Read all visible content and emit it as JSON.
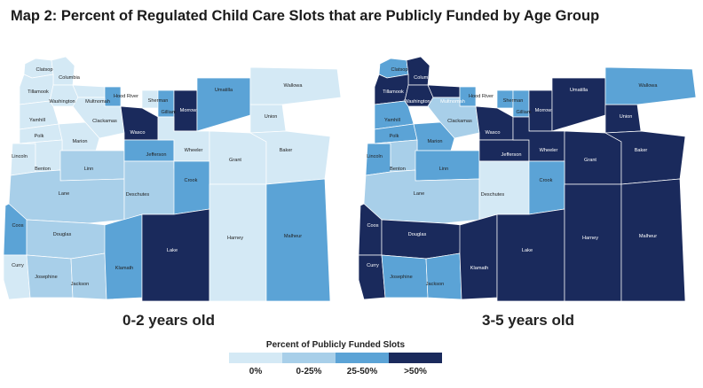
{
  "title": "Map 2: Percent of Regulated Child Care Slots that are Publicly Funded by Age Group",
  "colors": {
    "c0": "#d4e9f5",
    "c1": "#a8cfe9",
    "c2": "#5ba3d6",
    "c3": "#1a2a5c"
  },
  "maps": [
    {
      "label": "0-2 years old",
      "counties": {
        "Clatsop": 0,
        "Columbia": 0,
        "Tillamook": 0,
        "Washington": 0,
        "Multnomah": 0,
        "Hood River": 2,
        "Sherman": 0,
        "Gilliam": 2,
        "Morrow": 3,
        "Umatilla": 2,
        "Union": 0,
        "Wallowa": 0,
        "Yamhill": 0,
        "Clackamas": 0,
        "Wasco": 3,
        "Polk": 0,
        "Marion": 0,
        "Lincoln": 0,
        "Benton": 0,
        "Linn": 1,
        "Jefferson": 2,
        "Wheeler": 0,
        "Grant": 0,
        "Baker": 0,
        "Lane": 1,
        "Deschutes": 1,
        "Crook": 2,
        "Coos": 2,
        "Douglas": 1,
        "Curry": 0,
        "Josephine": 1,
        "Jackson": 1,
        "Klamath": 2,
        "Lake": 3,
        "Harney": 0,
        "Malheur": 2
      }
    },
    {
      "label": "3-5 years old",
      "counties": {
        "Clatsop": 2,
        "Columbia": 3,
        "Tillamook": 3,
        "Washington": 3,
        "Multnomah": 3,
        "Hood River": 2,
        "Sherman": 2,
        "Gilliam": 2,
        "Morrow": 3,
        "Umatilla": 3,
        "Union": 3,
        "Wallowa": 2,
        "Yamhill": 2,
        "Clackamas": 1,
        "Wasco": 3,
        "Polk": 2,
        "Marion": 2,
        "Lincoln": 2,
        "Benton": 1,
        "Linn": 2,
        "Jefferson": 3,
        "Wheeler": 3,
        "Grant": 3,
        "Baker": 3,
        "Lane": 1,
        "Deschutes": 0,
        "Crook": 2,
        "Coos": 3,
        "Douglas": 3,
        "Curry": 3,
        "Josephine": 2,
        "Jackson": 2,
        "Klamath": 3,
        "Lake": 3,
        "Harney": 3,
        "Malheur": 3
      }
    }
  ],
  "legend": {
    "title": "Percent of Publicly Funded Slots",
    "items": [
      {
        "label": "0%",
        "cls": 0
      },
      {
        "label": "0-25%",
        "cls": 1
      },
      {
        "label": "25-50%",
        "cls": 2
      },
      {
        "label": ">50%",
        "cls": 3
      }
    ]
  }
}
